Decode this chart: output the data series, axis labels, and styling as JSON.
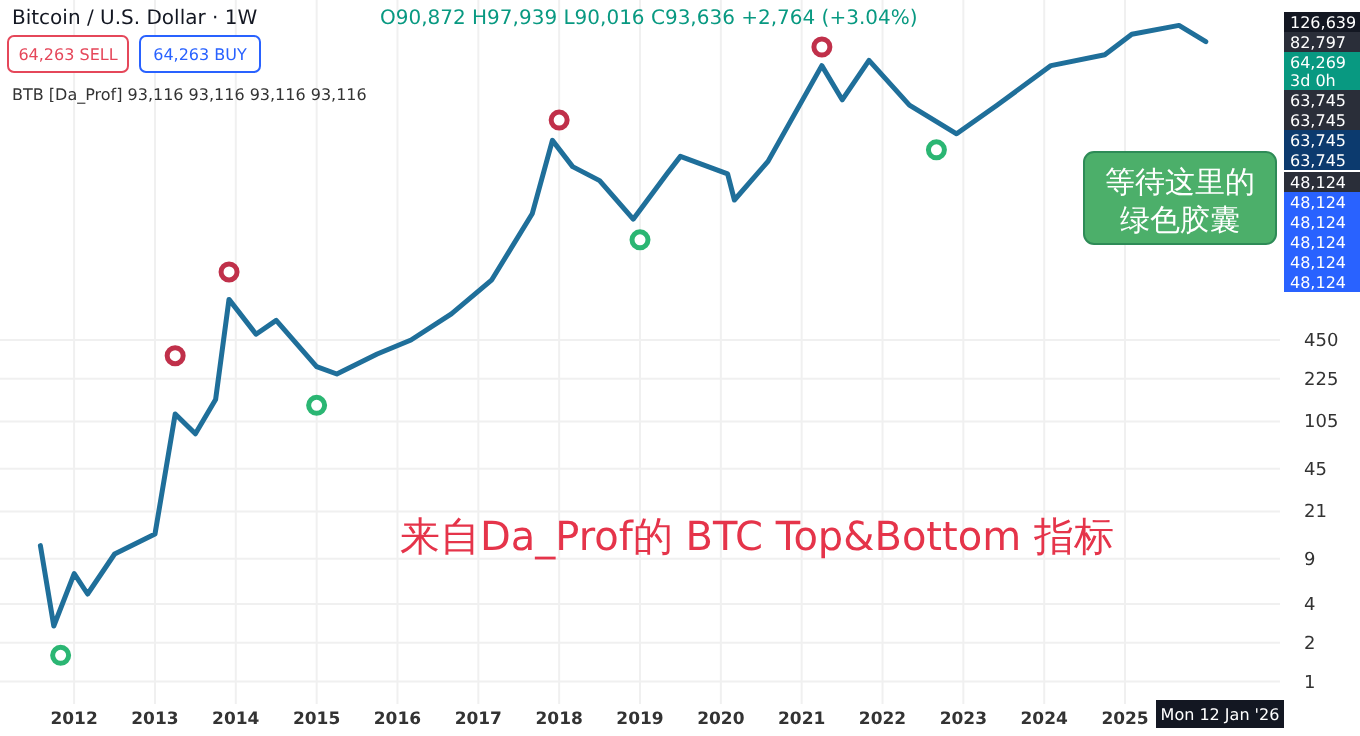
{
  "chart_data": {
    "type": "line",
    "title": "Bitcoin / U.S. Dollar · 1W",
    "subtitle": "O90,872 H97,939 L90,016 C93,636 +2,764 (+3.04%)",
    "annotations": [
      "BTB [Da_Prof] 93,116 93,116 93,116 93,116",
      "64,263 SELL",
      "64,263 BUY",
      "126,639",
      "82,797",
      "64,269",
      "3d 0h",
      "63,745",
      "63,745",
      "63,745",
      "63,745",
      "48,124",
      "48,124",
      "48,124",
      "48,124",
      "48,124",
      "48,124",
      "Mon 12 Jan '26",
      "来自Da_Prof的 BTC Top&Bottom 指标",
      "等待这里的绿色胶囊"
    ],
    "x": [
      "2011-08",
      "2011-10",
      "2012-01",
      "2012-03",
      "2012-07",
      "2013-01",
      "2013-04",
      "2013-07",
      "2013-10",
      "2013-12",
      "2014-04",
      "2014-07",
      "2015-01",
      "2015-04",
      "2015-10",
      "2016-03",
      "2016-09",
      "2017-03",
      "2017-09",
      "2017-12",
      "2018-03",
      "2018-07",
      "2018-12",
      "2019-05",
      "2019-07",
      "2020-02",
      "2020-03",
      "2020-08",
      "2021-04",
      "2021-07",
      "2021-11",
      "2022-05",
      "2022-12",
      "2023-06",
      "2024-02",
      "2024-10",
      "2025-02",
      "2025-09",
      "2026-01"
    ],
    "series": [
      {
        "color": "#1f6f9a",
        "values": [
          11.4,
          2.7,
          6.9,
          4.8,
          9.8,
          14,
          120,
          84,
          155,
          930,
          500,
          640,
          280,
          245,
          350,
          450,
          720,
          1320,
          4300,
          16000,
          10000,
          7800,
          3900,
          8800,
          12000,
          8800,
          5500,
          11000,
          61000,
          33000,
          67000,
          30000,
          18000,
          30000,
          61000,
          74000,
          107000,
          125000,
          93636
        ]
      },
      {
        "type": "scatter",
        "color": "#2bb673",
        "x": [
          "2011-11",
          "2015-01",
          "2019-01",
          "2022-09"
        ],
        "values": [
          1.6,
          140,
          2700,
          13500
        ]
      },
      {
        "type": "scatter",
        "color": "#c0304a",
        "x": [
          "2013-04",
          "2013-12",
          "2018-01",
          "2021-04"
        ],
        "values": [
          340,
          1520,
          23000,
          85000
        ]
      }
    ],
    "xlim": [
      "2011-02",
      "2026-12"
    ],
    "xticks": [
      {
        "value": "2012",
        "label": "2012"
      },
      {
        "value": "2013",
        "label": "2013"
      },
      {
        "value": "2014",
        "label": "2014"
      },
      {
        "value": "2015",
        "label": "2015"
      },
      {
        "value": "2016",
        "label": "2016"
      },
      {
        "value": "2017",
        "label": "2017"
      },
      {
        "value": "2018",
        "label": "2018"
      },
      {
        "value": "2019",
        "label": "2019"
      },
      {
        "value": "2020",
        "label": "2020"
      },
      {
        "value": "2021",
        "label": "2021"
      },
      {
        "value": "2022",
        "label": "2022"
      },
      {
        "value": "2023",
        "label": "2023"
      },
      {
        "value": "2024",
        "label": "2024"
      },
      {
        "value": "2025",
        "label": "2025"
      }
    ],
    "ylim": [
      0.67,
      197000
    ],
    "yticks": [
      1,
      2,
      4,
      9,
      21,
      45,
      105,
      225,
      450
    ],
    "log": true,
    "grid": true
  }
}
